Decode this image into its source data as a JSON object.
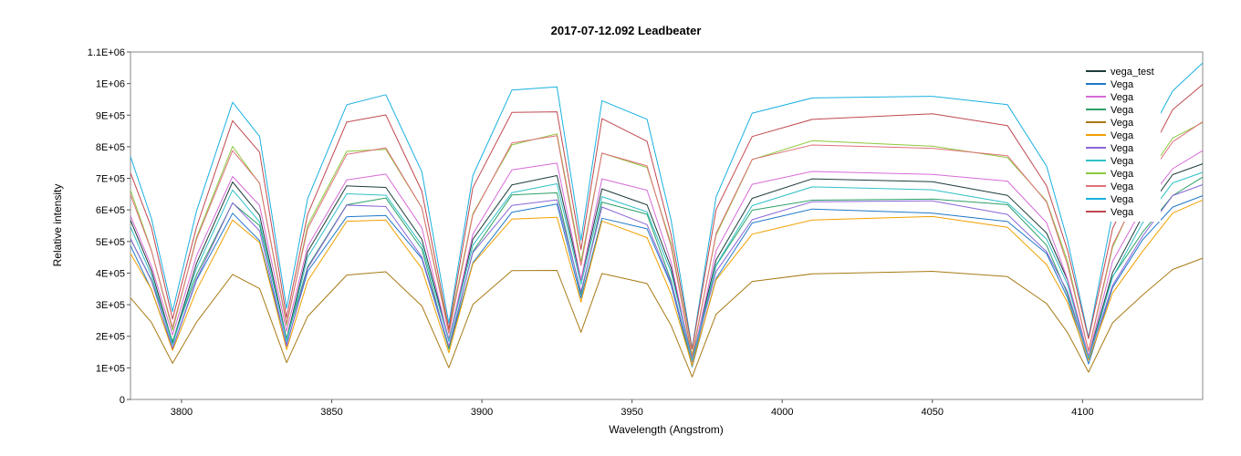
{
  "chart_data": {
    "type": "line",
    "title": "2017-07-12.092   Leadbeater",
    "xlabel": "Wavelength (Angstrom)",
    "ylabel": "Relative intensity",
    "xlim": [
      3783,
      4140
    ],
    "ylim": [
      0,
      1100000
    ],
    "xticks": [
      3800,
      3850,
      3900,
      3950,
      4000,
      4050,
      4100
    ],
    "xtick_labels": [
      "3800",
      "3850",
      "3900",
      "3950",
      "4000",
      "4050",
      "4100"
    ],
    "yticks": [
      0,
      100000,
      200000,
      300000,
      400000,
      500000,
      600000,
      700000,
      800000,
      900000,
      1000000,
      1100000
    ],
    "ytick_labels": [
      "0",
      "1E+05",
      "2E+05",
      "3E+05",
      "4E+05",
      "5E+05",
      "6E+05",
      "7E+05",
      "8E+05",
      "9E+05",
      "1E+06",
      "1.1E+06"
    ],
    "grid": false,
    "legend_position": "top-right",
    "x": [
      3783,
      3790,
      3797,
      3805,
      3817,
      3826,
      3835,
      3842,
      3855,
      3868,
      3880,
      3889,
      3897,
      3910,
      3925,
      3933,
      3940,
      3955,
      3963,
      3970,
      3978,
      3990,
      4010,
      4050,
      4075,
      4088,
      4095,
      4102,
      4110,
      4120,
      4130,
      4140
    ],
    "shape": [
      0.68,
      0.5,
      0.23,
      0.52,
      0.83,
      0.72,
      0.24,
      0.56,
      0.82,
      0.83,
      0.62,
      0.22,
      0.62,
      0.84,
      0.86,
      0.45,
      0.82,
      0.76,
      0.5,
      0.15,
      0.55,
      0.78,
      0.84,
      0.84,
      0.8,
      0.64,
      0.45,
      0.17,
      0.5,
      0.7,
      0.86,
      0.92
    ],
    "series": [
      {
        "name": "vega_test",
        "color": "#1f3b3b",
        "scale": 820000
      },
      {
        "name": "Vega",
        "color": "#1f78c8",
        "scale": 710000
      },
      {
        "name": "Vega",
        "color": "#d66bd6",
        "scale": 860000
      },
      {
        "name": "Vega",
        "color": "#2ca067",
        "scale": 760000
      },
      {
        "name": "Vega",
        "color": "#a87a14",
        "scale": 480000
      },
      {
        "name": "Vega",
        "color": "#f0a000",
        "scale": 680000
      },
      {
        "name": "Vega",
        "color": "#8a66d6",
        "scale": 740000
      },
      {
        "name": "Vega",
        "color": "#2fc0c8",
        "scale": 790000
      },
      {
        "name": "Vega",
        "color": "#8cc83c",
        "scale": 965000
      },
      {
        "name": "Vega",
        "color": "#e0707a",
        "scale": 960000
      },
      {
        "name": "Vega",
        "color": "#1ab0e0",
        "scale": 1150000
      },
      {
        "name": "Vega",
        "color": "#c04850",
        "scale": 1070000
      }
    ]
  }
}
